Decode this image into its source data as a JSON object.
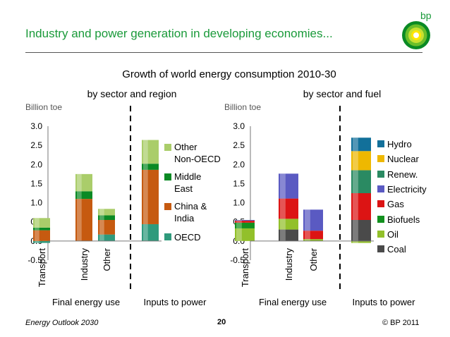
{
  "header": {
    "title": "Industry and power generation in developing economies...",
    "logo_text": "bp"
  },
  "footer": {
    "left": "Energy Outlook 2030",
    "page": "20",
    "right": "© BP 2011"
  },
  "colors": {
    "oecd": "#2f9a7c",
    "china_india": "#c65a10",
    "middle_east": "#0a8a24",
    "other_non_oecd": "#aacd6a",
    "coal": "#4a4a4a",
    "oil": "#92c02a",
    "biofuels": "#12901e",
    "gas": "#dc1414",
    "electricity": "#5a5ac2",
    "renew": "#2a8a62",
    "nuclear": "#eeb800",
    "hydro": "#12709a",
    "title": "#1a9a3a"
  },
  "chart_data": {
    "type": "bar",
    "stacked": true,
    "title": "Growth of world energy consumption 2010-30",
    "ylim": [
      -0.5,
      3.0
    ],
    "yticks": [
      "3.0",
      "2.5",
      "2.0",
      "1.5",
      "1.0",
      "0.5",
      "0.0",
      "-0.5"
    ],
    "grid": false,
    "panels": [
      {
        "subtitle": "by sector and region",
        "ylabel": "Billion toe",
        "groups": [
          "Final energy use",
          "Inputs to power"
        ],
        "categories": [
          "Transport",
          "Industry",
          "Other",
          ""
        ],
        "series": [
          {
            "name": "OECD",
            "color_key": "oecd",
            "values": [
              -0.05,
              0.0,
              0.17,
              0.44
            ]
          },
          {
            "name": "China & India",
            "color_key": "china_india",
            "values": [
              0.28,
              1.1,
              0.38,
              1.42
            ]
          },
          {
            "name": "Middle East",
            "color_key": "middle_east",
            "values": [
              0.07,
              0.2,
              0.12,
              0.16
            ]
          },
          {
            "name": "Other Non-OECD",
            "color_key": "other_non_oecd",
            "values": [
              0.25,
              0.45,
              0.17,
              0.62
            ]
          }
        ],
        "legend": [
          {
            "label": "Other Non-OECD",
            "color_key": "other_non_oecd"
          },
          {
            "label": "Middle East",
            "color_key": "middle_east"
          },
          {
            "label": "China & India",
            "color_key": "china_india"
          },
          {
            "label": "OECD",
            "color_key": "oecd"
          }
        ]
      },
      {
        "subtitle": "by sector and fuel",
        "ylabel": "Billion toe",
        "groups": [
          "Final energy use",
          "Inputs to power"
        ],
        "categories": [
          "Transport",
          "Industry",
          "Other",
          ""
        ],
        "series": [
          {
            "name": "Coal",
            "color_key": "coal",
            "values": [
              0.0,
              0.3,
              0.0,
              0.55
            ]
          },
          {
            "name": "Oil",
            "color_key": "oil",
            "values": [
              0.33,
              0.28,
              0.05,
              -0.05
            ]
          },
          {
            "name": "Biofuels",
            "color_key": "biofuels",
            "values": [
              0.15,
              0.0,
              0.0,
              0.0
            ]
          },
          {
            "name": "Gas",
            "color_key": "gas",
            "values": [
              0.05,
              0.53,
              0.22,
              0.7
            ]
          },
          {
            "name": "Electricity",
            "color_key": "electricity",
            "values": [
              0.02,
              0.65,
              0.55,
              0.0
            ]
          },
          {
            "name": "Renew.",
            "color_key": "renew",
            "values": [
              0.0,
              0.0,
              0.0,
              0.6
            ]
          },
          {
            "name": "Nuclear",
            "color_key": "nuclear",
            "values": [
              0.0,
              0.0,
              0.0,
              0.5
            ]
          },
          {
            "name": "Hydro",
            "color_key": "hydro",
            "values": [
              0.0,
              0.0,
              0.0,
              0.35
            ]
          }
        ],
        "legend": [
          {
            "label": "Hydro",
            "color_key": "hydro"
          },
          {
            "label": "Nuclear",
            "color_key": "nuclear"
          },
          {
            "label": "Renew.",
            "color_key": "renew"
          },
          {
            "label": "Electricity",
            "color_key": "electricity"
          },
          {
            "label": "Gas",
            "color_key": "gas"
          },
          {
            "label": "Biofuels",
            "color_key": "biofuels"
          },
          {
            "label": "Oil",
            "color_key": "oil"
          },
          {
            "label": "Coal",
            "color_key": "coal"
          }
        ]
      }
    ]
  }
}
